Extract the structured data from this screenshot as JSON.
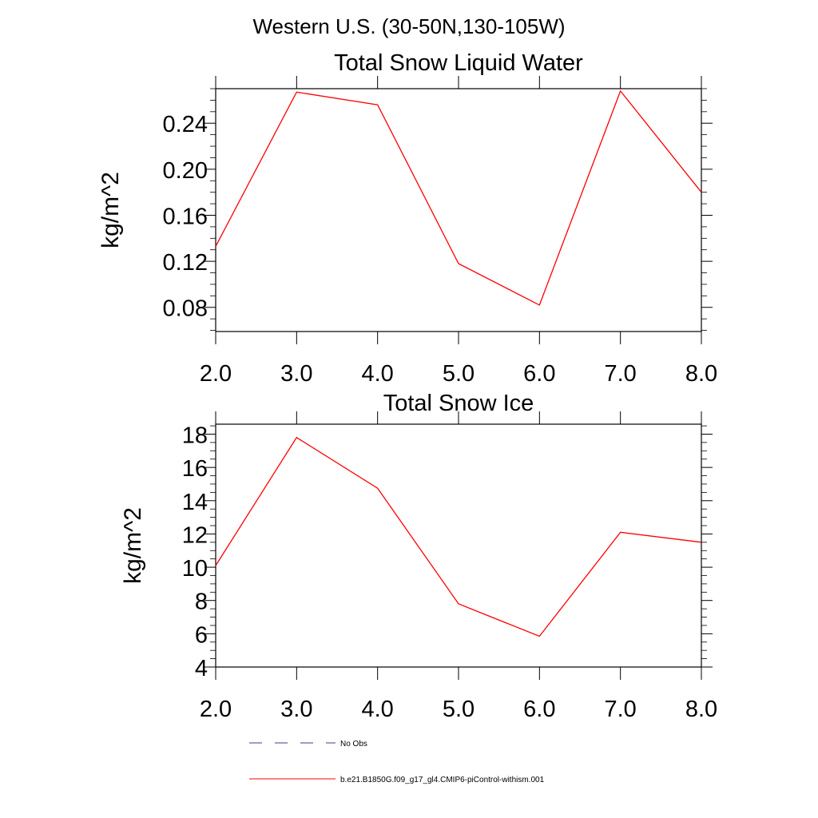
{
  "figure_title": "Western U.S. (30-50N,130-105W)",
  "colors": {
    "model_line": "#ff0000",
    "obs_line": "#3b3b8f",
    "axis": "#000000",
    "background": "#ffffff"
  },
  "legend": [
    {
      "label": "No Obs",
      "style": "dashed",
      "color": "#3b3b8f"
    },
    {
      "label": "b.e21.B1850G.f09_g17_gl4.CMIP6-piControl-withism.001",
      "style": "solid",
      "color": "#ff0000"
    }
  ],
  "chart_data": [
    {
      "type": "line",
      "title": "Total Snow Liquid Water",
      "xlabel": "",
      "ylabel": "kg/m^2",
      "x": [
        2.0,
        3.0,
        4.0,
        5.0,
        6.0,
        7.0,
        8.0
      ],
      "xlim": [
        2.0,
        8.0
      ],
      "ylim": [
        0.059,
        0.27
      ],
      "xticks": [
        "2.0",
        "3.0",
        "4.0",
        "5.0",
        "6.0",
        "7.0",
        "8.0"
      ],
      "yticks": [
        0.08,
        0.12,
        0.16,
        0.2,
        0.24
      ],
      "ytick_labels": [
        "0.08",
        "0.12",
        "0.16",
        "0.20",
        "0.24"
      ],
      "series": [
        {
          "name": "b.e21.B1850G.f09_g17_gl4.CMIP6-piControl-withism.001",
          "values": [
            0.133,
            0.267,
            0.256,
            0.118,
            0.082,
            0.268,
            0.18
          ]
        }
      ],
      "grid": false
    },
    {
      "type": "line",
      "title": "Total Snow Ice",
      "xlabel": "",
      "ylabel": "kg/m^2",
      "x": [
        2.0,
        3.0,
        4.0,
        5.0,
        6.0,
        7.0,
        8.0
      ],
      "xlim": [
        2.0,
        8.0
      ],
      "ylim": [
        4.0,
        18.6
      ],
      "xticks": [
        "2.0",
        "3.0",
        "4.0",
        "5.0",
        "6.0",
        "7.0",
        "8.0"
      ],
      "yticks": [
        4,
        6,
        8,
        10,
        12,
        14,
        16,
        18
      ],
      "ytick_labels": [
        "4",
        "6",
        "8",
        "10",
        "12",
        "14",
        "16",
        "18"
      ],
      "series": [
        {
          "name": "b.e21.B1850G.f09_g17_gl4.CMIP6-piControl-withism.001",
          "values": [
            10.1,
            17.8,
            14.75,
            7.8,
            5.85,
            12.1,
            11.5
          ]
        }
      ],
      "grid": false
    }
  ]
}
